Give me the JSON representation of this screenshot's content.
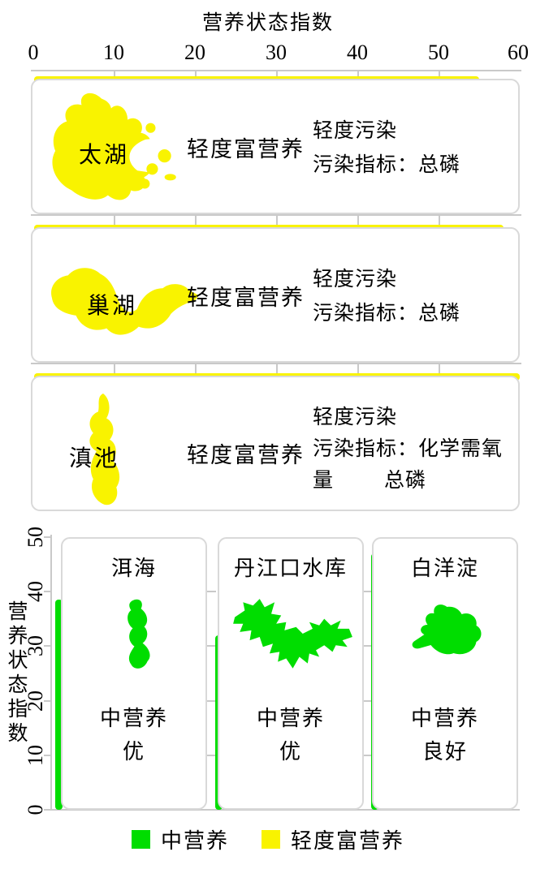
{
  "colors": {
    "yellow": "#f9f300",
    "green": "#00dd00",
    "cardborder": "#d9d9d9",
    "tick": "#c9c9c9",
    "text": "#000000"
  },
  "top_chart": {
    "axis_title": "营养状态指数",
    "tick_labels": [
      "0",
      "10",
      "20",
      "30",
      "40",
      "50",
      "60"
    ]
  },
  "top_panels": [
    {
      "lake": "太湖",
      "value": 55,
      "trophic": "轻度富营养",
      "pollution_level": "轻度污染",
      "indicator_line": "污染指标：总磷",
      "indicator_extra": ""
    },
    {
      "lake": "巢湖",
      "value": 58,
      "trophic": "轻度富营养",
      "pollution_level": "轻度污染",
      "indicator_line": "污染指标：总磷",
      "indicator_extra": ""
    },
    {
      "lake": "滇池",
      "value": 60,
      "trophic": "轻度富营养",
      "pollution_level": "轻度污染",
      "indicator_line": "污染指标：化学需氧量",
      "indicator_extra": "总磷"
    }
  ],
  "bottom_chart": {
    "axis_label": "营养状态指数",
    "tick_labels": [
      "0",
      "10",
      "20",
      "30",
      "40",
      "50"
    ]
  },
  "bottom_panels": [
    {
      "lake": "洱海",
      "value": 38.5,
      "trophic": "中营养",
      "quality": "优"
    },
    {
      "lake": "丹江口水库",
      "value": 32,
      "trophic": "中营养",
      "quality": "优"
    },
    {
      "lake": "白洋淀",
      "value": 47,
      "trophic": "中营养",
      "quality": "良好"
    }
  ],
  "legend": [
    {
      "label": "中营养",
      "color": "#00dd00"
    },
    {
      "label": "轻度富营养",
      "color": "#f9f300"
    }
  ],
  "chart_data": [
    {
      "type": "bar",
      "orientation": "horizontal",
      "xlabel": "营养状态指数",
      "xlim": [
        0,
        60
      ],
      "x_ticks": [
        0,
        10,
        20,
        30,
        40,
        50,
        60
      ],
      "categories": [
        "太湖",
        "巢湖",
        "滇池"
      ],
      "values": [
        55,
        58,
        60
      ],
      "bar_color": "#f9f300",
      "grid": "ticks-between-panels",
      "annotations": [
        {
          "lake": "太湖",
          "trophic_state": "轻度富营养",
          "pollution": "轻度污染",
          "indicators": [
            "总磷"
          ]
        },
        {
          "lake": "巢湖",
          "trophic_state": "轻度富营养",
          "pollution": "轻度污染",
          "indicators": [
            "总磷"
          ]
        },
        {
          "lake": "滇池",
          "trophic_state": "轻度富营养",
          "pollution": "轻度污染",
          "indicators": [
            "化学需氧量",
            "总磷"
          ]
        }
      ]
    },
    {
      "type": "bar",
      "orientation": "vertical",
      "ylabel": "营养状态指数",
      "ylim": [
        0,
        50
      ],
      "y_ticks": [
        0,
        10,
        20,
        30,
        40,
        50
      ],
      "categories": [
        "洱海",
        "丹江口水库",
        "白洋淀"
      ],
      "values": [
        38.5,
        32,
        47
      ],
      "bar_color": "#00dd00",
      "grid": "ticks-between-panels",
      "legend_position": "bottom-center",
      "annotations": [
        {
          "lake": "洱海",
          "trophic_state": "中营养",
          "quality": "优"
        },
        {
          "lake": "丹江口水库",
          "trophic_state": "中营养",
          "quality": "优"
        },
        {
          "lake": "白洋淀",
          "trophic_state": "中营养",
          "quality": "良好"
        }
      ],
      "legend": [
        {
          "label": "中营养",
          "color": "#00dd00"
        },
        {
          "label": "轻度富营养",
          "color": "#f9f300"
        }
      ]
    }
  ]
}
